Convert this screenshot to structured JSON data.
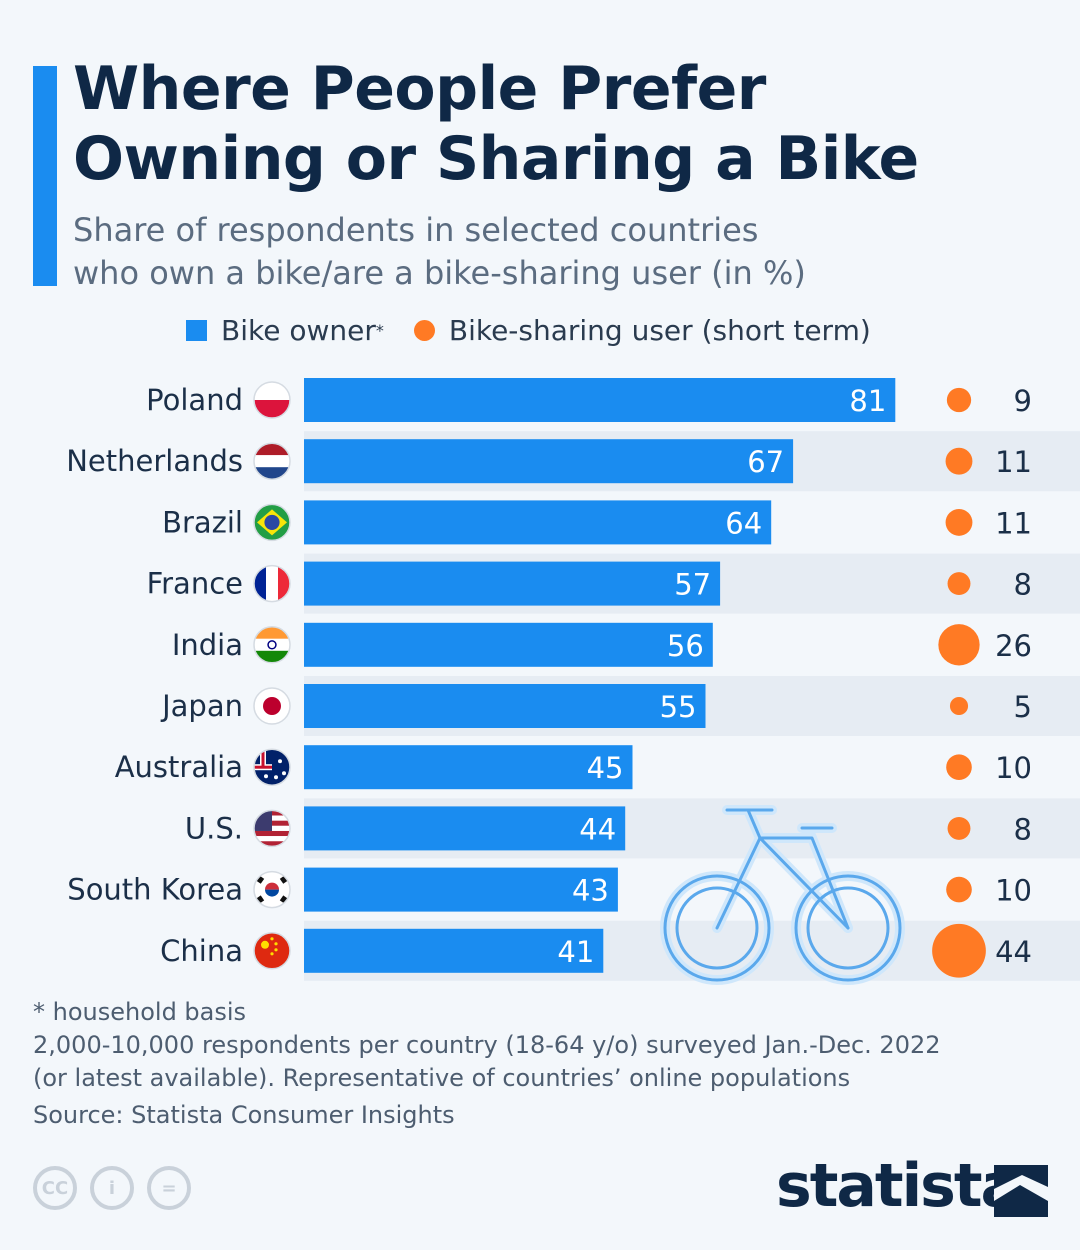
{
  "title_lines": [
    "Where People Prefer",
    "Owning or Sharing a Bike"
  ],
  "subtitle_lines": [
    "Share of respondents in selected countries",
    "who own a bike/are a bike-sharing user (in %)"
  ],
  "legend": {
    "owner": "Bike owner",
    "owner_mark": "*",
    "sharing": "Bike-sharing user (short term)"
  },
  "colors": {
    "owner": "#1a8cf0",
    "sharing": "#ff7a24",
    "row_alt": "#e6ecf3",
    "bg": "#f3f7fb"
  },
  "chart_data": {
    "type": "bar",
    "title": "Where People Prefer Owning or Sharing a Bike",
    "orientation": "horizontal",
    "categories": [
      "Poland",
      "Netherlands",
      "Brazil",
      "France",
      "India",
      "Japan",
      "Australia",
      "U.S.",
      "South Korea",
      "China"
    ],
    "series": [
      {
        "name": "Bike owner*",
        "values": [
          81,
          67,
          64,
          57,
          56,
          55,
          45,
          44,
          43,
          41
        ]
      },
      {
        "name": "Bike-sharing user (short term)",
        "values": [
          9,
          11,
          11,
          8,
          26,
          5,
          10,
          8,
          10,
          44
        ]
      }
    ],
    "xlim": [
      0,
      100
    ],
    "unit": "%"
  },
  "flags": [
    "flag-poland-icon",
    "flag-netherlands-icon",
    "flag-brazil-icon",
    "flag-france-icon",
    "flag-india-icon",
    "flag-japan-icon",
    "flag-australia-icon",
    "flag-us-icon",
    "flag-south-korea-icon",
    "flag-china-icon"
  ],
  "notes": {
    "footnote": "* household basis",
    "method_1": "2,000-10,000 respondents per country (18-64 y/o) surveyed Jan.-Dec. 2022",
    "method_2": "(or latest available). Representative of countries’ online populations",
    "source": "Source: Statista Consumer Insights"
  },
  "license_icons": {
    "cc": "CC",
    "by": "i",
    "nd": "="
  },
  "brand": "statista"
}
